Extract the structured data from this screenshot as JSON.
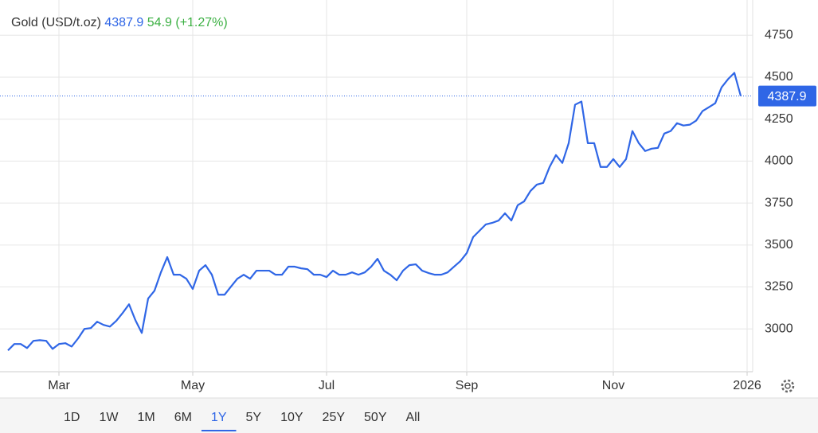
{
  "chart_data": {
    "type": "line",
    "title": "Gold (USD/t.oz)",
    "price": 4387.9,
    "change": 54.9,
    "change_pct": "(+1.27%)",
    "categories": [
      null,
      null,
      null,
      null,
      null,
      null,
      null,
      null,
      "Mar",
      null,
      null,
      null,
      null,
      null,
      null,
      null,
      null,
      null,
      null,
      null,
      null,
      null,
      null,
      null,
      null,
      null,
      null,
      null,
      null,
      "May",
      null,
      null,
      null,
      null,
      null,
      null,
      null,
      null,
      null,
      null,
      null,
      null,
      null,
      null,
      null,
      null,
      null,
      null,
      null,
      null,
      "Jul",
      null,
      null,
      null,
      null,
      null,
      null,
      null,
      null,
      null,
      null,
      null,
      null,
      null,
      null,
      null,
      null,
      null,
      null,
      null,
      null,
      null,
      "Sep",
      null,
      null,
      null,
      null,
      null,
      null,
      null,
      null,
      null,
      null,
      null,
      null,
      null,
      null,
      null,
      null,
      null,
      null,
      null,
      null,
      null,
      null,
      "Nov",
      null,
      null,
      null,
      null,
      null,
      null,
      null,
      null,
      null,
      null,
      null,
      null,
      null,
      null,
      null,
      null,
      null,
      null,
      null,
      null,
      "2026"
    ],
    "series": [
      {
        "name": "Gold",
        "color": "#2f66e6",
        "values": [
          2872,
          2910,
          2910,
          2886,
          2929,
          2933,
          2929,
          2881,
          2910,
          2915,
          2895,
          2943,
          3000,
          3005,
          3043,
          3024,
          3014,
          3048,
          3095,
          3147,
          3052,
          2976,
          3181,
          3228,
          3337,
          3428,
          3323,
          3323,
          3299,
          3238,
          3347,
          3380,
          3323,
          3204,
          3204,
          3252,
          3299,
          3323,
          3299,
          3347,
          3347,
          3347,
          3323,
          3323,
          3371,
          3371,
          3361,
          3356,
          3323,
          3323,
          3309,
          3347,
          3323,
          3323,
          3337,
          3323,
          3337,
          3371,
          3418,
          3347,
          3323,
          3290,
          3347,
          3380,
          3385,
          3347,
          3333,
          3323,
          3323,
          3337,
          3371,
          3404,
          3452,
          3547,
          3585,
          3623,
          3632,
          3646,
          3689,
          3646,
          3737,
          3760,
          3822,
          3860,
          3870,
          3965,
          4036,
          3989,
          4107,
          4336,
          4355,
          4107,
          4107,
          3965,
          3965,
          4012,
          3965,
          4012,
          4179,
          4107,
          4060,
          4074,
          4079,
          4164,
          4179,
          4226,
          4212,
          4217,
          4241,
          4298,
          4321,
          4345,
          4440,
          4488,
          4526,
          4387.9,
          null
        ]
      }
    ],
    "ylim": [
      2745,
      4960
    ],
    "yticks": [
      3000,
      3250,
      3500,
      3750,
      4000,
      4250,
      4500,
      4750
    ],
    "grid": true,
    "ranges": [
      "1D",
      "1W",
      "1M",
      "6M",
      "1Y",
      "5Y",
      "10Y",
      "25Y",
      "50Y",
      "All"
    ],
    "active_range": "1Y"
  }
}
